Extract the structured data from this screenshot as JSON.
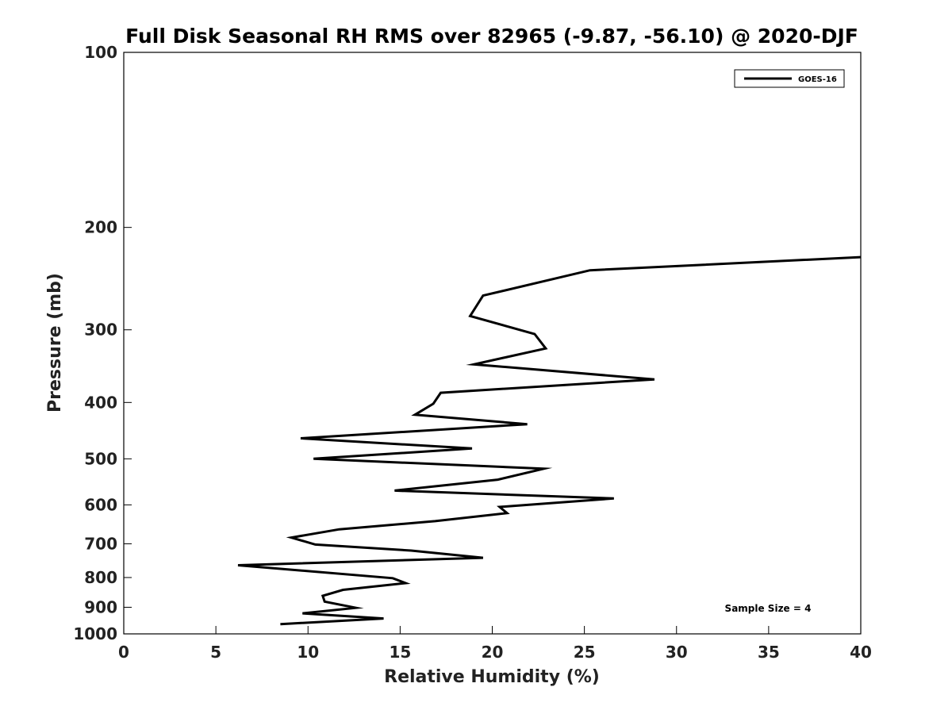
{
  "chart_data": {
    "type": "line",
    "title": "Full Disk Seasonal RH RMS over 82965 (-9.87, -56.10) @ 2020-DJF",
    "xlabel": "Relative Humidity (%)",
    "ylabel": "Pressure (mb)",
    "xlim": [
      0,
      40
    ],
    "ylim": [
      100,
      1000
    ],
    "y_scale": "log",
    "y_inverted": true,
    "grid": false,
    "legend_position": "top-right",
    "x_ticks": [
      "0",
      "5",
      "10",
      "15",
      "20",
      "25",
      "30",
      "35",
      "40"
    ],
    "y_ticks": [
      "100",
      "200",
      "300",
      "400",
      "500",
      "600",
      "700",
      "800",
      "900",
      "1000"
    ],
    "annotation": "Sample Size = 4",
    "series": [
      {
        "name": "GOES-16",
        "color": "#000000",
        "points": [
          {
            "x": 40.0,
            "y": 225
          },
          {
            "x": 25.3,
            "y": 237
          },
          {
            "x": 19.5,
            "y": 262
          },
          {
            "x": 18.8,
            "y": 284
          },
          {
            "x": 22.3,
            "y": 305
          },
          {
            "x": 22.9,
            "y": 323
          },
          {
            "x": 19.0,
            "y": 344
          },
          {
            "x": 28.8,
            "y": 365
          },
          {
            "x": 17.2,
            "y": 385
          },
          {
            "x": 16.8,
            "y": 402
          },
          {
            "x": 15.8,
            "y": 420
          },
          {
            "x": 21.9,
            "y": 436
          },
          {
            "x": 9.6,
            "y": 461
          },
          {
            "x": 18.9,
            "y": 480
          },
          {
            "x": 10.3,
            "y": 500
          },
          {
            "x": 22.8,
            "y": 520
          },
          {
            "x": 20.3,
            "y": 543
          },
          {
            "x": 14.7,
            "y": 567
          },
          {
            "x": 26.6,
            "y": 585
          },
          {
            "x": 20.4,
            "y": 605
          },
          {
            "x": 20.8,
            "y": 620
          },
          {
            "x": 16.9,
            "y": 640
          },
          {
            "x": 11.7,
            "y": 661
          },
          {
            "x": 9.1,
            "y": 683
          },
          {
            "x": 10.4,
            "y": 702
          },
          {
            "x": 15.6,
            "y": 719
          },
          {
            "x": 19.5,
            "y": 740
          },
          {
            "x": 6.2,
            "y": 762
          },
          {
            "x": 14.6,
            "y": 802
          },
          {
            "x": 15.3,
            "y": 818
          },
          {
            "x": 11.9,
            "y": 840
          },
          {
            "x": 10.8,
            "y": 860
          },
          {
            "x": 10.9,
            "y": 880
          },
          {
            "x": 12.6,
            "y": 902
          },
          {
            "x": 9.7,
            "y": 922
          },
          {
            "x": 14.1,
            "y": 941
          },
          {
            "x": 8.5,
            "y": 962
          }
        ]
      }
    ]
  }
}
